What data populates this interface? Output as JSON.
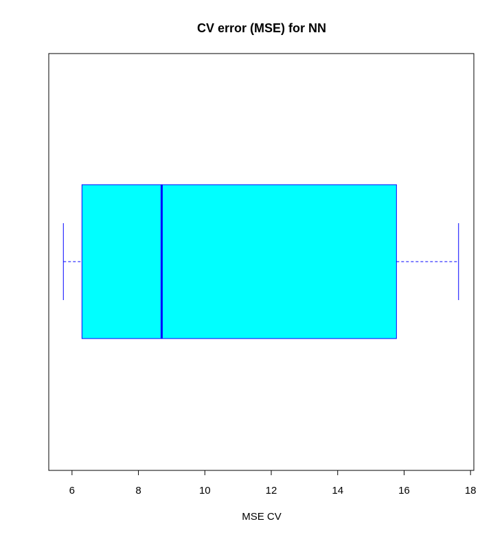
{
  "chart_data": {
    "type": "boxplot",
    "orientation": "horizontal",
    "title": "CV error (MSE) for NN",
    "xlabel": "MSE CV",
    "ylabel": "",
    "xlim": [
      5.3,
      18.1
    ],
    "x_ticks": [
      6,
      8,
      10,
      12,
      14,
      16,
      18
    ],
    "x_tick_labels": [
      "6",
      "8",
      "10",
      "12",
      "14",
      "16",
      "18"
    ],
    "grid": false,
    "box": {
      "whisker_low": 5.74,
      "q1": 6.3,
      "median": 8.7,
      "q3": 15.77,
      "whisker_high": 17.64
    },
    "colors": {
      "box_fill": "#00ffff",
      "box_border": "#0000ff",
      "median_line": "#0000ff",
      "whisker": "#0000ff",
      "frame": "#000000"
    }
  }
}
